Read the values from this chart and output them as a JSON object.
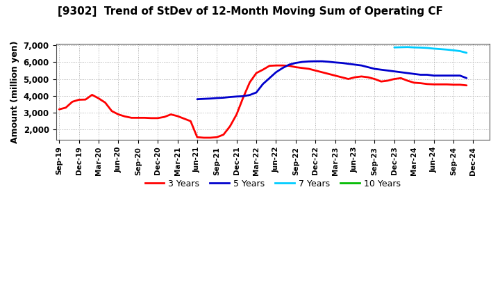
{
  "title": "[9302]  Trend of StDev of 12-Month Moving Sum of Operating CF",
  "ylabel": "Amount (million yen)",
  "ylim": [
    1400,
    7100
  ],
  "yticks": [
    2000,
    3000,
    4000,
    5000,
    6000,
    7000
  ],
  "background_color": "#ffffff",
  "grid_color": "#999999",
  "series": {
    "3 Years": {
      "color": "#ff0000",
      "linewidth": 2.0,
      "x": [
        0,
        1,
        2,
        3,
        4,
        5,
        6,
        7,
        8,
        9,
        10,
        11,
        12,
        13,
        14,
        15,
        16,
        17,
        18,
        19,
        20,
        21,
        22,
        23,
        24,
        25,
        26,
        27,
        28,
        29,
        30,
        31,
        32,
        33,
        34,
        35,
        36,
        37,
        38,
        39,
        40,
        41,
        42,
        43,
        44,
        45,
        46,
        47,
        48,
        49,
        50,
        51,
        52,
        53,
        54,
        55,
        56,
        57,
        58,
        59,
        60,
        61,
        62
      ],
      "y": [
        3200,
        3300,
        3650,
        3770,
        3780,
        4060,
        3850,
        3600,
        3100,
        2900,
        2780,
        2700,
        2700,
        2700,
        2680,
        2680,
        2750,
        2900,
        2800,
        2650,
        2500,
        1550,
        1520,
        1520,
        1550,
        1700,
        2200,
        2900,
        3900,
        4800,
        5350,
        5550,
        5780,
        5800,
        5800,
        5780,
        5700,
        5650,
        5600,
        5500,
        5400,
        5300,
        5200,
        5100,
        5000,
        5100,
        5150,
        5100,
        5000,
        4850,
        4900,
        5000,
        5050,
        4900,
        4780,
        4750,
        4700,
        4680,
        4680,
        4680,
        4660,
        4660,
        4620
      ]
    },
    "5 Years": {
      "color": "#0000cc",
      "linewidth": 2.0,
      "x": [
        21,
        22,
        23,
        24,
        25,
        26,
        27,
        28,
        29,
        30,
        31,
        32,
        33,
        34,
        35,
        36,
        37,
        38,
        39,
        40,
        41,
        42,
        43,
        44,
        45,
        46,
        47,
        48,
        49,
        50,
        51,
        52,
        53,
        54,
        55,
        56,
        57,
        58,
        59,
        60,
        61,
        62
      ],
      "y": [
        3800,
        3820,
        3840,
        3870,
        3890,
        3930,
        3960,
        3980,
        4050,
        4200,
        4700,
        5050,
        5400,
        5650,
        5850,
        5950,
        6010,
        6040,
        6050,
        6050,
        6020,
        5980,
        5950,
        5900,
        5850,
        5800,
        5700,
        5600,
        5550,
        5500,
        5450,
        5400,
        5350,
        5300,
        5250,
        5250,
        5200,
        5200,
        5200,
        5200,
        5200,
        5050
      ]
    },
    "7 Years": {
      "color": "#00ccff",
      "linewidth": 2.0,
      "x": [
        51,
        52,
        53,
        54,
        55,
        56,
        57,
        58,
        59,
        60,
        61,
        62
      ],
      "y": [
        6870,
        6880,
        6890,
        6870,
        6860,
        6840,
        6800,
        6770,
        6740,
        6700,
        6650,
        6550
      ]
    },
    "10 Years": {
      "color": "#00bb00",
      "linewidth": 2.0,
      "x": [],
      "y": []
    }
  },
  "xtick_labels": [
    "Sep-19",
    "Dec-19",
    "Mar-20",
    "Jun-20",
    "Sep-20",
    "Dec-20",
    "Mar-21",
    "Jun-21",
    "Sep-21",
    "Dec-21",
    "Mar-22",
    "Jun-22",
    "Sep-22",
    "Dec-22",
    "Mar-23",
    "Jun-23",
    "Sep-23",
    "Dec-23",
    "Mar-24",
    "Jun-24",
    "Sep-24",
    "Dec-24"
  ],
  "xtick_positions": [
    0,
    3,
    6,
    9,
    12,
    15,
    18,
    21,
    24,
    27,
    30,
    33,
    36,
    39,
    42,
    45,
    48,
    51,
    54,
    57,
    60,
    63
  ],
  "n_points": 66,
  "legend_labels": [
    "3 Years",
    "5 Years",
    "7 Years",
    "10 Years"
  ],
  "legend_colors": [
    "#ff0000",
    "#0000cc",
    "#00ccff",
    "#00bb00"
  ],
  "title_fontsize": 11,
  "tick_fontsize": 7.5,
  "ylabel_fontsize": 9
}
